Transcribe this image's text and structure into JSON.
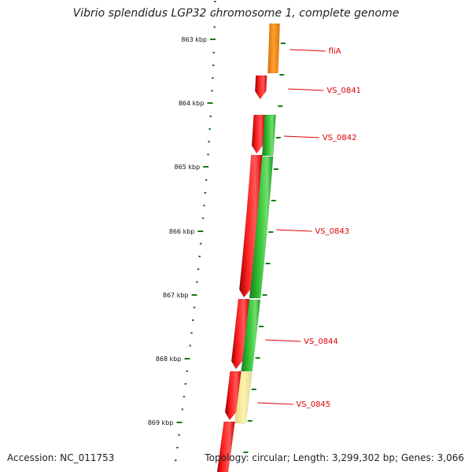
{
  "title": "Vibrio splendidus LGP32 chromosome 1, complete genome",
  "footer": {
    "accession": "Accession: NC_011753",
    "summary": "Topology: circular; Length: 3,299,302 bp; Genes: 3,066"
  },
  "axis": {
    "ticks": [
      "863 kbp",
      "864 kbp",
      "865 kbp",
      "866 kbp",
      "867 kbp",
      "868 kbp",
      "869 kbp"
    ]
  },
  "genes": [
    {
      "label": "fliA"
    },
    {
      "label": "VS_0841"
    },
    {
      "label": "VS_0842"
    },
    {
      "label": "VS_0843"
    },
    {
      "label": "VS_0844"
    },
    {
      "label": "VS_0845"
    }
  ],
  "colors": {
    "cds": "#ff0000",
    "gene": "#22aa22",
    "orange": "#ff8c00",
    "pale": "#f0e68c",
    "backbone": "#888888",
    "tick": "#1a7a1a",
    "label": "#dd0000"
  }
}
